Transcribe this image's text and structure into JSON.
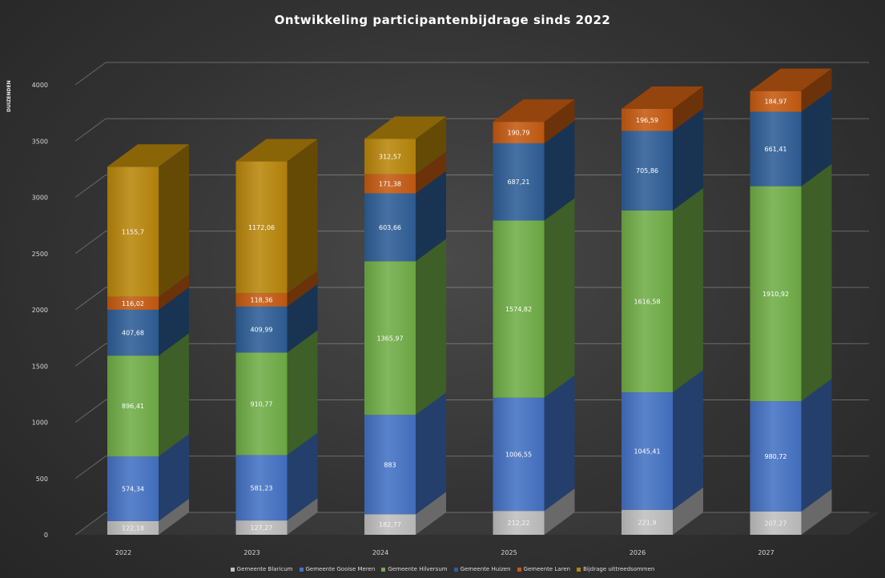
{
  "chart_data": {
    "type": "bar",
    "stacked": true,
    "title": "Ontwikkeling participantenbijdrage sinds 2022",
    "ylabel": "DUIZENDEN",
    "xlabel": "",
    "ylim": [
      0,
      4000
    ],
    "y_ticks": [
      "0",
      "500",
      "1000",
      "1500",
      "2000",
      "2500",
      "3000",
      "3500",
      "4000"
    ],
    "grid": true,
    "legend_position": "bottom",
    "categories": [
      "2022",
      "2023",
      "2024",
      "2025",
      "2026",
      "2027"
    ],
    "series": [
      {
        "name": "Gemeente Blaricum",
        "color": "#bfbfbf",
        "values": [
          122.18,
          127.27,
          182.77,
          212.22,
          221.9,
          207.27
        ],
        "labels": [
          "122,18",
          "127,27",
          "182,77",
          "212,22",
          "221,9",
          "207,27"
        ]
      },
      {
        "name": "Gemeente Gooise Meren",
        "color": "#4472c4",
        "values": [
          574.34,
          581.23,
          883,
          1006.55,
          1045.41,
          980.72
        ],
        "labels": [
          "574,34",
          "581,23",
          "883",
          "1006,55",
          "1045,41",
          "980,72"
        ]
      },
      {
        "name": "Gemeente Hilversum",
        "color": "#70ad47",
        "values": [
          896.41,
          910.77,
          1365.97,
          1574.82,
          1616.58,
          1910.92
        ],
        "labels": [
          "896,41",
          "910,77",
          "1365,97",
          "1574,82",
          "1616,58",
          "1910,92"
        ]
      },
      {
        "name": "Gemeente Huizen",
        "color": "#2e5e96",
        "values": [
          407.68,
          409.99,
          603.66,
          687.21,
          705.86,
          661.41
        ],
        "labels": [
          "407,68",
          "409,99",
          "603,66",
          "687,21",
          "705,86",
          "661,41"
        ]
      },
      {
        "name": "Gemeente Laren",
        "color": "#c55a11",
        "values": [
          116.02,
          118.36,
          171.38,
          190.79,
          196.59,
          184.97
        ],
        "labels": [
          "116,02",
          "118,36",
          "171,38",
          "190,79",
          "196,59",
          "184,97"
        ]
      },
      {
        "name": "Bijdrage uittreedsommen",
        "color": "#b8860b",
        "values": [
          1155.7,
          1172.06,
          312.57,
          null,
          null,
          null
        ],
        "labels": [
          "1155,7",
          "1172,06",
          "312,57",
          "",
          "",
          ""
        ]
      }
    ]
  }
}
